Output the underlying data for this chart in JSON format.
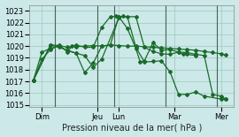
{
  "background_color": "#cce8e8",
  "grid_color": "#99ccbb",
  "line_color": "#1a6b2a",
  "marker": "D",
  "markersize": 2.0,
  "linewidth": 0.9,
  "ylim": [
    1014.8,
    1023.5
  ],
  "yticks": [
    1015,
    1016,
    1017,
    1018,
    1019,
    1020,
    1021,
    1022,
    1023
  ],
  "xlabel": "Pression niveau de la mer( hPa )",
  "xlabel_fontsize": 7,
  "tick_fontsize": 6,
  "xtick_labels": [
    "Dim",
    "",
    "Jeu",
    "Lun",
    "",
    "Mar",
    "",
    "Mer"
  ],
  "xtick_positions": [
    0.5,
    3,
    8,
    10.5,
    13,
    16.5,
    19,
    22.5
  ],
  "vline_positions": [
    3,
    8,
    10,
    16,
    22
  ],
  "series1_x": [
    0.5,
    1.5,
    2.5,
    3.5,
    4.5,
    5.0,
    5.5,
    6.5,
    7.5,
    8.5,
    9.5,
    10.2,
    10.5,
    11.5,
    12.5,
    13.0,
    13.5,
    14.5,
    15.5,
    16.5,
    17.5,
    18.0,
    18.5,
    19.5
  ],
  "series1_y": [
    1017.1,
    1018.9,
    1019.7,
    1020.1,
    1019.5,
    1020.0,
    1020.1,
    1019.9,
    1019.9,
    1021.6,
    1022.5,
    1022.55,
    1022.5,
    1021.5,
    1019.8,
    1018.65,
    1018.75,
    1020.3,
    1019.65,
    1019.7,
    1019.5,
    1019.3,
    1019.3,
    1019.2
  ],
  "series2_x": [
    0.5,
    2.5,
    3.5,
    4.5,
    5.5,
    6.5,
    7.5,
    8.5,
    9.5,
    10.5,
    11.5,
    12.5,
    13.5,
    14.5,
    15.5,
    16.5,
    17.5,
    18.5,
    19.5,
    20.5,
    21.5,
    22.5,
    23.0
  ],
  "series2_y": [
    1017.1,
    1020.1,
    1020.05,
    1019.9,
    1019.95,
    1020.0,
    1020.05,
    1020.0,
    1020.1,
    1020.05,
    1020.0,
    1020.0,
    1019.95,
    1019.9,
    1019.85,
    1019.8,
    1019.75,
    1019.7,
    1019.65,
    1019.55,
    1019.45,
    1019.35,
    1019.25
  ],
  "series3_x": [
    0.5,
    1.5,
    2.5,
    3.5,
    4.5,
    5.5,
    6.5,
    7.5,
    8.5,
    10.5,
    11.0,
    11.5,
    12.5,
    13.5,
    14.5,
    15.5,
    16.5,
    17.5,
    18.5,
    19.5,
    20.5,
    22.5,
    23.0
  ],
  "series3_y": [
    1017.1,
    1019.5,
    1019.8,
    1020.0,
    1019.6,
    1019.4,
    1019.2,
    1018.2,
    1018.9,
    1022.4,
    1022.55,
    1022.5,
    1019.9,
    1018.65,
    1018.7,
    1018.75,
    1017.8,
    1015.9,
    1015.9,
    1016.1,
    1015.75,
    1015.5,
    1015.5
  ],
  "series4_x": [
    0.5,
    2.5,
    3.5,
    5.5,
    6.5,
    7.5,
    8.5,
    9.5,
    10.5,
    12.5,
    13.5,
    14.5,
    15.5,
    16.5,
    17.5,
    18.5,
    19.5,
    20.5,
    21.5,
    22.5,
    23.0
  ],
  "series4_y": [
    1017.1,
    1020.1,
    1019.9,
    1019.4,
    1017.75,
    1018.55,
    1020.0,
    1020.1,
    1022.5,
    1022.5,
    1019.9,
    1019.55,
    1019.35,
    1019.3,
    1019.5,
    1019.45,
    1019.3,
    1019.2,
    1015.9,
    1015.75,
    1015.5
  ],
  "xlim": [
    0,
    24
  ]
}
